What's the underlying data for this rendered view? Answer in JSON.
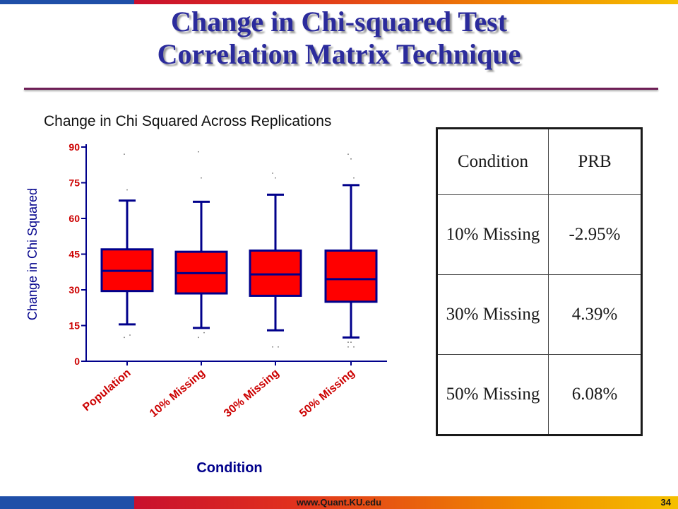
{
  "slide": {
    "title_line1": "Change in Chi-squared Test",
    "title_line2": "Correlation Matrix Technique",
    "footer_url": "www.Quant.KU.edu",
    "page_number": "34"
  },
  "colors": {
    "title": "#2b2b9c",
    "box_fill": "#ff0000",
    "box_stroke": "#00008b",
    "tick_label": "#cc0000",
    "axis_text": "#00008b"
  },
  "chart_data": {
    "type": "boxplot",
    "title": "Change in Chi Squared Across Replications",
    "xlabel": "Condition",
    "ylabel": "Change in Chi Squared",
    "ylim": [
      0,
      90
    ],
    "yticks": [
      0,
      15,
      30,
      45,
      60,
      75,
      90
    ],
    "categories": [
      "Population",
      "10% Missing",
      "30% Missing",
      "50% Missing"
    ],
    "boxes": [
      {
        "whisker_low": 15.5,
        "q1": 29.5,
        "median": 38,
        "q3": 47,
        "whisker_high": 67.5
      },
      {
        "whisker_low": 14,
        "q1": 28.5,
        "median": 37,
        "q3": 46,
        "whisker_high": 67
      },
      {
        "whisker_low": 13,
        "q1": 27.5,
        "median": 36.5,
        "q3": 46.5,
        "whisker_high": 70
      },
      {
        "whisker_low": 10,
        "q1": 25,
        "median": 34.5,
        "q3": 46.5,
        "whisker_high": 74
      }
    ],
    "outliers": [
      [
        87,
        72,
        11,
        10
      ],
      [
        88,
        77,
        12,
        10
      ],
      [
        79,
        77,
        6,
        6
      ],
      [
        87,
        85,
        77,
        8,
        8,
        6,
        6
      ]
    ],
    "grid": false,
    "legend": "none"
  },
  "table": {
    "headers": [
      "Condition",
      "PRB"
    ],
    "rows": [
      {
        "condition": "10% Missing",
        "prb": "-2.95%"
      },
      {
        "condition": "30% Missing",
        "prb": "4.39%"
      },
      {
        "condition": "50% Missing",
        "prb": "6.08%"
      }
    ]
  }
}
